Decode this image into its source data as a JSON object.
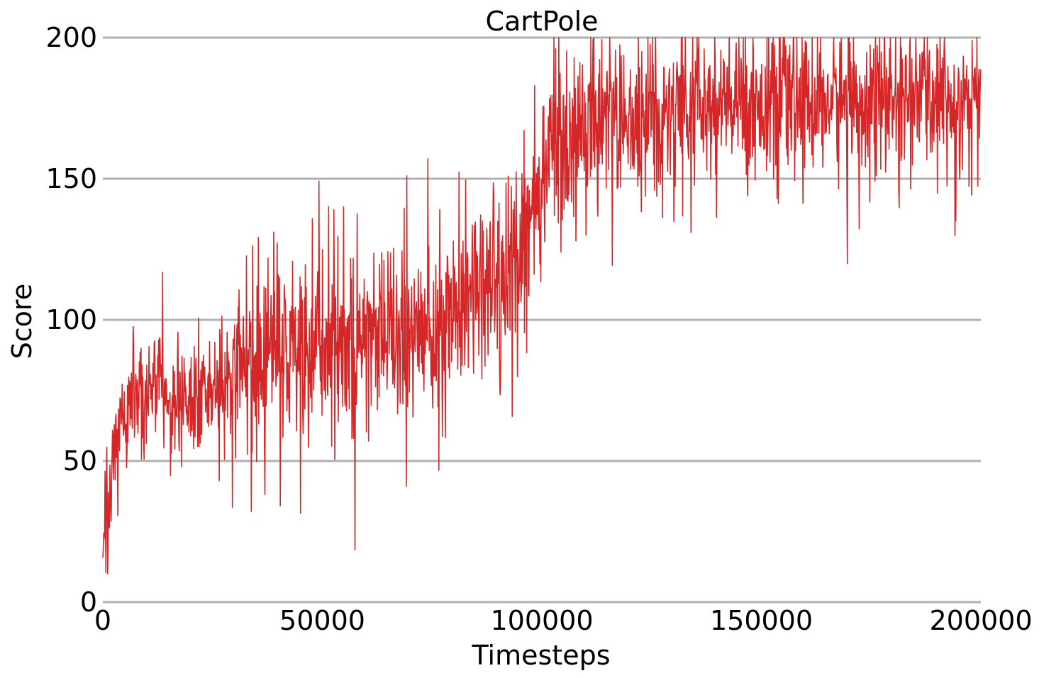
{
  "chart_data": {
    "type": "line",
    "title": "CartPole",
    "xlabel": "Timesteps",
    "ylabel": "Score",
    "xlim": [
      0,
      200000
    ],
    "ylim": [
      0,
      200
    ],
    "x_ticks": [
      "0",
      "50000",
      "100000",
      "150000",
      "200000"
    ],
    "y_ticks": [
      "0",
      "50",
      "100",
      "150",
      "200"
    ],
    "grid": "horizontal",
    "legend": "none",
    "colors": {
      "series": "#d62728",
      "grid": "#b0b0b0",
      "text": "#000000"
    },
    "series": [
      {
        "color": "#d62728",
        "noise_seed": 7,
        "x": [
          0,
          500,
          1000,
          1500,
          2000,
          3000,
          4000,
          5000,
          6000,
          8000,
          10000,
          12000,
          15000,
          18000,
          20000,
          25000,
          28000,
          30000,
          35000,
          40000,
          45000,
          50000,
          55000,
          60000,
          65000,
          70000,
          75000,
          80000,
          85000,
          90000,
          95000,
          100000,
          105000,
          110000,
          115000,
          120000,
          125000,
          130000,
          135000,
          140000,
          145000,
          150000,
          155000,
          160000,
          165000,
          170000,
          175000,
          180000,
          185000,
          190000,
          195000,
          200000
        ],
        "center": [
          18,
          25,
          30,
          38,
          48,
          58,
          63,
          66,
          68,
          72,
          75,
          76,
          75,
          73,
          72,
          74,
          77,
          82,
          88,
          90,
          91,
          92,
          93,
          95,
          97,
          99,
          100,
          102,
          105,
          112,
          125,
          150,
          163,
          168,
          170,
          170,
          172,
          174,
          175,
          175,
          176,
          176,
          177,
          177,
          177,
          178,
          178,
          178,
          179,
          179,
          179,
          180
        ],
        "spread": [
          10,
          12,
          14,
          14,
          12,
          12,
          12,
          13,
          13,
          13,
          13,
          13,
          13,
          13,
          13,
          14,
          16,
          20,
          22,
          22,
          22,
          22,
          22,
          22,
          22,
          22,
          22,
          22,
          22,
          22,
          22,
          20,
          19,
          19,
          19,
          19,
          18,
          18,
          18,
          18,
          17,
          17,
          17,
          17,
          17,
          17,
          17,
          17,
          17,
          17,
          17,
          17
        ],
        "points": 2000,
        "y_cap": 200,
        "y_floor": 10
      }
    ]
  }
}
